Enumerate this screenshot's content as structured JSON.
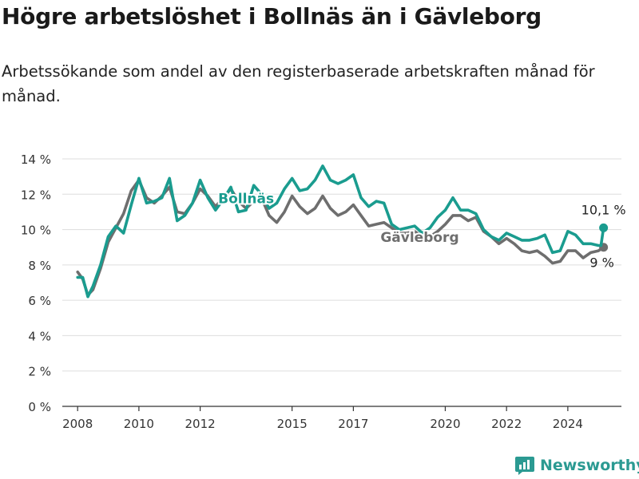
{
  "title": "Högre arbetslöshet i Bollnäs än i Gävleborg",
  "subtitle": "Arbetssökande som andel av den registerbaserade arbetskraften månad för månad.",
  "brand": {
    "name": "Newsworthy",
    "icon": "newsworthy-logo-icon",
    "color": "#2b9a92"
  },
  "chart_data": {
    "type": "line",
    "x_type": "date",
    "xlim": [
      "2007-07-01",
      "2025-10-01"
    ],
    "ylim": [
      0,
      14
    ],
    "y_ticks": [
      {
        "value": 0,
        "label": "0 %"
      },
      {
        "value": 2,
        "label": "2 %"
      },
      {
        "value": 4,
        "label": "4 %"
      },
      {
        "value": 6,
        "label": "6 %"
      },
      {
        "value": 8,
        "label": "8 %"
      },
      {
        "value": 10,
        "label": "10 %"
      },
      {
        "value": 12,
        "label": "12 %"
      },
      {
        "value": 14,
        "label": "14 %"
      }
    ],
    "x_ticks": [
      {
        "value": "2008-01-01",
        "label": "2008"
      },
      {
        "value": "2010-01-01",
        "label": "2010"
      },
      {
        "value": "2012-01-01",
        "label": "2012"
      },
      {
        "value": "2015-01-01",
        "label": "2015"
      },
      {
        "value": "2017-01-01",
        "label": "2017"
      },
      {
        "value": "2020-01-01",
        "label": "2020"
      },
      {
        "value": "2022-01-01",
        "label": "2022"
      },
      {
        "value": "2024-01-01",
        "label": "2024"
      }
    ],
    "grid": true,
    "series": [
      {
        "name": "Gävleborg",
        "color": "#6e6e6e",
        "end_label": "9 %",
        "points": [
          [
            "2008-01-01",
            7.6
          ],
          [
            "2008-03-01",
            7.2
          ],
          [
            "2008-05-01",
            6.3
          ],
          [
            "2008-07-01",
            6.6
          ],
          [
            "2008-10-01",
            7.8
          ],
          [
            "2009-01-01",
            9.3
          ],
          [
            "2009-04-01",
            10.1
          ],
          [
            "2009-07-01",
            10.9
          ],
          [
            "2009-10-01",
            12.2
          ],
          [
            "2010-01-01",
            12.8
          ],
          [
            "2010-04-01",
            11.8
          ],
          [
            "2010-07-01",
            11.5
          ],
          [
            "2010-10-01",
            11.9
          ],
          [
            "2011-01-01",
            12.4
          ],
          [
            "2011-04-01",
            11.0
          ],
          [
            "2011-07-01",
            10.9
          ],
          [
            "2011-10-01",
            11.5
          ],
          [
            "2012-01-01",
            12.3
          ],
          [
            "2012-04-01",
            11.9
          ],
          [
            "2012-07-01",
            11.3
          ],
          [
            "2012-10-01",
            11.8
          ],
          [
            "2013-01-01",
            12.3
          ],
          [
            "2013-04-01",
            11.6
          ],
          [
            "2013-07-01",
            11.2
          ],
          [
            "2013-10-01",
            11.6
          ],
          [
            "2014-01-01",
            11.8
          ],
          [
            "2014-04-01",
            10.8
          ],
          [
            "2014-07-01",
            10.4
          ],
          [
            "2014-10-01",
            11.0
          ],
          [
            "2015-01-01",
            11.9
          ],
          [
            "2015-04-01",
            11.3
          ],
          [
            "2015-07-01",
            10.9
          ],
          [
            "2015-10-01",
            11.2
          ],
          [
            "2016-01-01",
            11.9
          ],
          [
            "2016-04-01",
            11.2
          ],
          [
            "2016-07-01",
            10.8
          ],
          [
            "2016-10-01",
            11.0
          ],
          [
            "2017-01-01",
            11.4
          ],
          [
            "2017-04-01",
            10.8
          ],
          [
            "2017-07-01",
            10.2
          ],
          [
            "2017-10-01",
            10.3
          ],
          [
            "2018-01-01",
            10.4
          ],
          [
            "2018-04-01",
            10.1
          ],
          [
            "2018-07-01",
            9.8
          ],
          [
            "2018-10-01",
            9.8
          ],
          [
            "2019-01-01",
            9.9
          ],
          [
            "2019-04-01",
            9.6
          ],
          [
            "2019-07-01",
            9.6
          ],
          [
            "2019-10-01",
            9.9
          ],
          [
            "2020-01-01",
            10.3
          ],
          [
            "2020-04-01",
            10.8
          ],
          [
            "2020-07-01",
            10.8
          ],
          [
            "2020-10-01",
            10.5
          ],
          [
            "2021-01-01",
            10.7
          ],
          [
            "2021-04-01",
            9.9
          ],
          [
            "2021-07-01",
            9.6
          ],
          [
            "2021-10-01",
            9.2
          ],
          [
            "2022-01-01",
            9.5
          ],
          [
            "2022-04-01",
            9.2
          ],
          [
            "2022-07-01",
            8.8
          ],
          [
            "2022-10-01",
            8.7
          ],
          [
            "2023-01-01",
            8.8
          ],
          [
            "2023-04-01",
            8.5
          ],
          [
            "2023-07-01",
            8.1
          ],
          [
            "2023-10-01",
            8.2
          ],
          [
            "2024-01-01",
            8.8
          ],
          [
            "2024-04-01",
            8.8
          ],
          [
            "2024-07-01",
            8.4
          ],
          [
            "2024-10-01",
            8.7
          ],
          [
            "2025-01-01",
            8.8
          ],
          [
            "2025-03-01",
            9.0
          ]
        ]
      },
      {
        "name": "Bollnäs",
        "color": "#1a9c8f",
        "end_label": "10,1 %",
        "points": [
          [
            "2008-01-01",
            7.3
          ],
          [
            "2008-03-01",
            7.3
          ],
          [
            "2008-05-01",
            6.2
          ],
          [
            "2008-07-01",
            6.8
          ],
          [
            "2008-10-01",
            8.0
          ],
          [
            "2009-01-01",
            9.6
          ],
          [
            "2009-04-01",
            10.2
          ],
          [
            "2009-07-01",
            9.8
          ],
          [
            "2009-10-01",
            11.4
          ],
          [
            "2010-01-01",
            12.9
          ],
          [
            "2010-04-01",
            11.5
          ],
          [
            "2010-07-01",
            11.6
          ],
          [
            "2010-10-01",
            11.8
          ],
          [
            "2011-01-01",
            12.9
          ],
          [
            "2011-04-01",
            10.5
          ],
          [
            "2011-07-01",
            10.8
          ],
          [
            "2011-10-01",
            11.5
          ],
          [
            "2012-01-01",
            12.8
          ],
          [
            "2012-04-01",
            11.8
          ],
          [
            "2012-07-01",
            11.1
          ],
          [
            "2012-10-01",
            11.7
          ],
          [
            "2013-01-01",
            12.4
          ],
          [
            "2013-04-01",
            11.0
          ],
          [
            "2013-07-01",
            11.1
          ],
          [
            "2013-10-01",
            12.5
          ],
          [
            "2014-01-01",
            12.0
          ],
          [
            "2014-04-01",
            11.2
          ],
          [
            "2014-07-01",
            11.5
          ],
          [
            "2014-10-01",
            12.3
          ],
          [
            "2015-01-01",
            12.9
          ],
          [
            "2015-04-01",
            12.2
          ],
          [
            "2015-07-01",
            12.3
          ],
          [
            "2015-10-01",
            12.8
          ],
          [
            "2016-01-01",
            13.6
          ],
          [
            "2016-04-01",
            12.8
          ],
          [
            "2016-07-01",
            12.6
          ],
          [
            "2016-10-01",
            12.8
          ],
          [
            "2017-01-01",
            13.1
          ],
          [
            "2017-04-01",
            11.8
          ],
          [
            "2017-07-01",
            11.3
          ],
          [
            "2017-10-01",
            11.6
          ],
          [
            "2018-01-01",
            11.5
          ],
          [
            "2018-04-01",
            10.3
          ],
          [
            "2018-07-01",
            10.0
          ],
          [
            "2018-10-01",
            10.1
          ],
          [
            "2019-01-01",
            10.2
          ],
          [
            "2019-04-01",
            9.8
          ],
          [
            "2019-07-01",
            10.1
          ],
          [
            "2019-10-01",
            10.7
          ],
          [
            "2020-01-01",
            11.1
          ],
          [
            "2020-04-01",
            11.8
          ],
          [
            "2020-07-01",
            11.1
          ],
          [
            "2020-10-01",
            11.1
          ],
          [
            "2021-01-01",
            10.9
          ],
          [
            "2021-04-01",
            10.0
          ],
          [
            "2021-07-01",
            9.6
          ],
          [
            "2021-10-01",
            9.4
          ],
          [
            "2022-01-01",
            9.8
          ],
          [
            "2022-04-01",
            9.6
          ],
          [
            "2022-07-01",
            9.4
          ],
          [
            "2022-10-01",
            9.4
          ],
          [
            "2023-01-01",
            9.5
          ],
          [
            "2023-04-01",
            9.7
          ],
          [
            "2023-07-01",
            8.7
          ],
          [
            "2023-10-01",
            8.8
          ],
          [
            "2024-01-01",
            9.9
          ],
          [
            "2024-04-01",
            9.7
          ],
          [
            "2024-07-01",
            9.2
          ],
          [
            "2024-10-01",
            9.2
          ],
          [
            "2025-01-01",
            9.1
          ],
          [
            "2025-02-01",
            9.1
          ],
          [
            "2025-03-01",
            10.1
          ]
        ]
      }
    ],
    "annotations": [
      {
        "text": "Bollnäs",
        "series": "Bollnäs",
        "at_x": "2013-07-01",
        "at_y": 11.5
      },
      {
        "text": "Gävleborg",
        "series": "Gävleborg",
        "at_x": "2019-03-01",
        "at_y": 9.3
      }
    ]
  }
}
